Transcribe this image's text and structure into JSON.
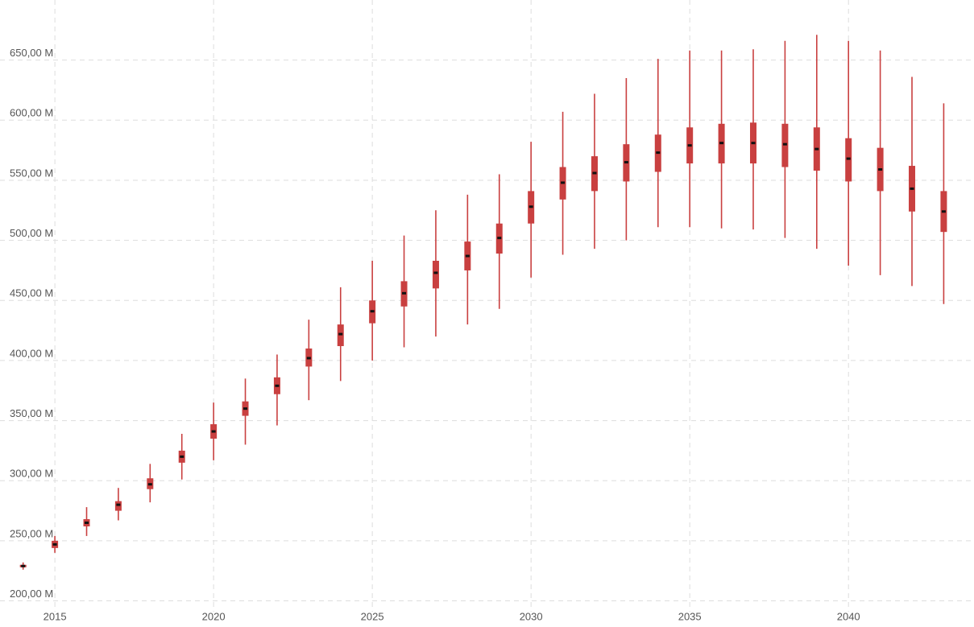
{
  "chart_data": {
    "type": "box",
    "x": [
      2014,
      2015,
      2016,
      2017,
      2018,
      2019,
      2020,
      2021,
      2022,
      2023,
      2024,
      2025,
      2026,
      2027,
      2028,
      2029,
      2030,
      2031,
      2032,
      2033,
      2034,
      2035,
      2036,
      2037,
      2038,
      2039,
      2040,
      2041,
      2042,
      2043
    ],
    "low": [
      226,
      240,
      254,
      267,
      282,
      301,
      317,
      330,
      346,
      367,
      383,
      400,
      411,
      420,
      430,
      443,
      469,
      488,
      493,
      500,
      511,
      511,
      510,
      509,
      502,
      493,
      479,
      471,
      462,
      447
    ],
    "q1": [
      228,
      244,
      262,
      275,
      293,
      315,
      335,
      354,
      372,
      395,
      412,
      431,
      445,
      460,
      475,
      489,
      514,
      534,
      541,
      549,
      557,
      564,
      564,
      564,
      561,
      558,
      549,
      541,
      524,
      507
    ],
    "median": [
      229,
      247,
      265,
      280,
      297,
      320,
      341,
      360,
      379,
      402,
      422,
      441,
      456,
      473,
      487,
      502,
      528,
      548,
      556,
      565,
      573,
      579,
      581,
      581,
      580,
      576,
      568,
      559,
      543,
      524
    ],
    "q3": [
      230,
      250,
      268,
      283,
      302,
      325,
      347,
      366,
      386,
      410,
      430,
      450,
      466,
      483,
      499,
      514,
      541,
      561,
      570,
      580,
      588,
      594,
      597,
      598,
      597,
      594,
      585,
      577,
      562,
      541
    ],
    "high": [
      232,
      254,
      278,
      294,
      314,
      339,
      365,
      385,
      405,
      434,
      461,
      483,
      504,
      525,
      538,
      555,
      582,
      607,
      622,
      635,
      651,
      658,
      658,
      659,
      666,
      671,
      666,
      658,
      636,
      614
    ],
    "color": "#c94040",
    "median_color": "#111111",
    "xlim": [
      2013.5,
      2043.7
    ],
    "xticks": [
      2015,
      2020,
      2025,
      2030,
      2035,
      2040
    ],
    "ylim": [
      192,
      700
    ],
    "yticks": [
      {
        "value": 200,
        "label": "200,00 M"
      },
      {
        "value": 250,
        "label": "250,00 M"
      },
      {
        "value": 300,
        "label": "300,00 M"
      },
      {
        "value": 350,
        "label": "350,00 M"
      },
      {
        "value": 400,
        "label": "400,00 M"
      },
      {
        "value": 450,
        "label": "450,00 M"
      },
      {
        "value": 500,
        "label": "500,00 M"
      },
      {
        "value": 550,
        "label": "550,00 M"
      },
      {
        "value": 600,
        "label": "600,00 M"
      },
      {
        "value": 650,
        "label": "650,00 M"
      }
    ],
    "grid": true
  }
}
